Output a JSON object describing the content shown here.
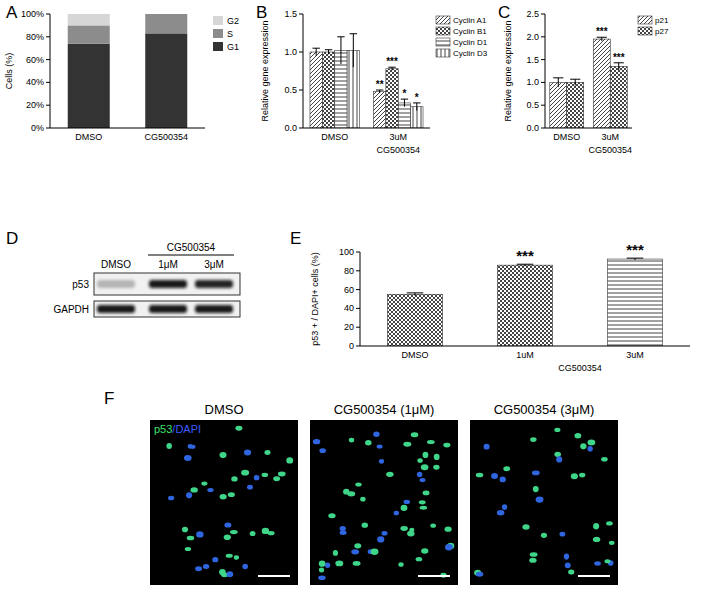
{
  "panel_labels": [
    "A",
    "B",
    "C",
    "D",
    "E",
    "F"
  ],
  "chart_data": [
    {
      "type": "bar",
      "stacked": true,
      "ylabel": "Cells (%)",
      "categories": [
        "DMSO",
        "CG500354"
      ],
      "series": [
        {
          "name": "G1",
          "color": "#333333",
          "values": [
            74,
            83
          ]
        },
        {
          "name": "S",
          "color": "#8c8c8c",
          "values": [
            16,
            17
          ]
        },
        {
          "name": "G2",
          "color": "#d6d6d6",
          "values": [
            10,
            0
          ]
        }
      ],
      "ylim": [
        0,
        100
      ],
      "yticks": [
        {
          "value": 0,
          "label": "0%"
        },
        {
          "value": 20,
          "label": "20%"
        },
        {
          "value": 40,
          "label": "40%"
        },
        {
          "value": 60,
          "label": "60%"
        },
        {
          "value": 80,
          "label": "80%"
        },
        {
          "value": 100,
          "label": "100%"
        }
      ],
      "legend": "right"
    },
    {
      "type": "bar",
      "ylabel": "Relative gene expression",
      "categories": [
        "DMSO",
        "3uM"
      ],
      "x_group_label": {
        "text": "CG500354",
        "categories": [
          1
        ]
      },
      "series": [
        {
          "name": "Cyclin A1",
          "color": "#444444",
          "values": [
            1.0,
            0.48
          ],
          "errors": [
            0.05,
            0.02
          ]
        },
        {
          "name": "Cyclin B1",
          "color": "#444444",
          "values": [
            1.0,
            0.78
          ],
          "errors": [
            0.03,
            0.02
          ]
        },
        {
          "name": "Cyclin D1",
          "color": "#444444",
          "values": [
            1.02,
            0.33
          ],
          "errors": [
            0.18,
            0.05
          ]
        },
        {
          "name": "Cyclin D3",
          "color": "#444444",
          "values": [
            1.02,
            0.28
          ],
          "errors": [
            0.22,
            0.05
          ]
        }
      ],
      "annotations": [
        {
          "text": "**",
          "series": 0,
          "category": 1
        },
        {
          "text": "***",
          "series": 1,
          "category": 1
        },
        {
          "text": "*",
          "series": 2,
          "category": 1
        },
        {
          "text": "*",
          "series": 3,
          "category": 1
        }
      ],
      "ylim": [
        0,
        1.5
      ],
      "yticks": [
        {
          "value": 0,
          "label": "0.0"
        },
        0.5,
        {
          "value": 1,
          "label": "1.0"
        },
        1.5
      ],
      "legend": "right"
    },
    {
      "type": "bar",
      "ylabel": "Relative gene expression",
      "categories": [
        "DMSO",
        "3uM"
      ],
      "x_group_label": {
        "text": "CG500354",
        "categories": [
          1
        ]
      },
      "series": [
        {
          "name": "p21",
          "color": "#444444",
          "values": [
            1.0,
            1.95
          ],
          "errors": [
            0.1,
            0.04
          ]
        },
        {
          "name": "p27",
          "color": "#444444",
          "values": [
            1.0,
            1.35
          ],
          "errors": [
            0.07,
            0.08
          ]
        }
      ],
      "annotations": [
        {
          "text": "***",
          "series": 0,
          "category": 1
        },
        {
          "text": "***",
          "series": 1,
          "category": 1
        }
      ],
      "ylim": [
        0,
        2.5
      ],
      "yticks": [
        {
          "value": 0,
          "label": "0.0"
        },
        0.5,
        {
          "value": 1,
          "label": "1.0"
        },
        1.5,
        {
          "value": 2,
          "label": "2.0"
        },
        2.5
      ],
      "legend": "right"
    },
    {
      "type": "bar",
      "ylabel": "p53 + / DAPI+ cells (%)",
      "categories": [
        "DMSO",
        "1uM",
        "3uM"
      ],
      "x_group_label": {
        "text": "CG500354",
        "categories": [
          1,
          2
        ]
      },
      "values": [
        55,
        86,
        92.5
      ],
      "errors": [
        1.5,
        1,
        1
      ],
      "colors": [
        "#444444",
        "#444444",
        "#444444"
      ],
      "annotations": [
        {
          "text": "***",
          "category": 1
        },
        {
          "text": "***",
          "category": 2
        }
      ],
      "ylim": [
        0,
        100
      ],
      "yticks": [
        0,
        20,
        40,
        60,
        80,
        100
      ]
    }
  ],
  "blot": {
    "treatment": "CG500354",
    "lanes": [
      "DMSO",
      "1μM",
      "3μM"
    ],
    "rows": [
      {
        "name": "p53",
        "band_intensity": [
          0.25,
          0.95,
          0.9
        ]
      },
      {
        "name": "GAPDH",
        "band_intensity": [
          0.95,
          0.95,
          0.95
        ]
      }
    ]
  },
  "micrographs": {
    "titles": [
      "DMSO",
      "CG500354 (1μM)",
      "CG500354 (3μM)"
    ],
    "stain_labels": [
      {
        "text": "p53",
        "color": "#3ee06a"
      },
      {
        "text": "/DAPI",
        "color": "#3a5cff"
      }
    ]
  }
}
